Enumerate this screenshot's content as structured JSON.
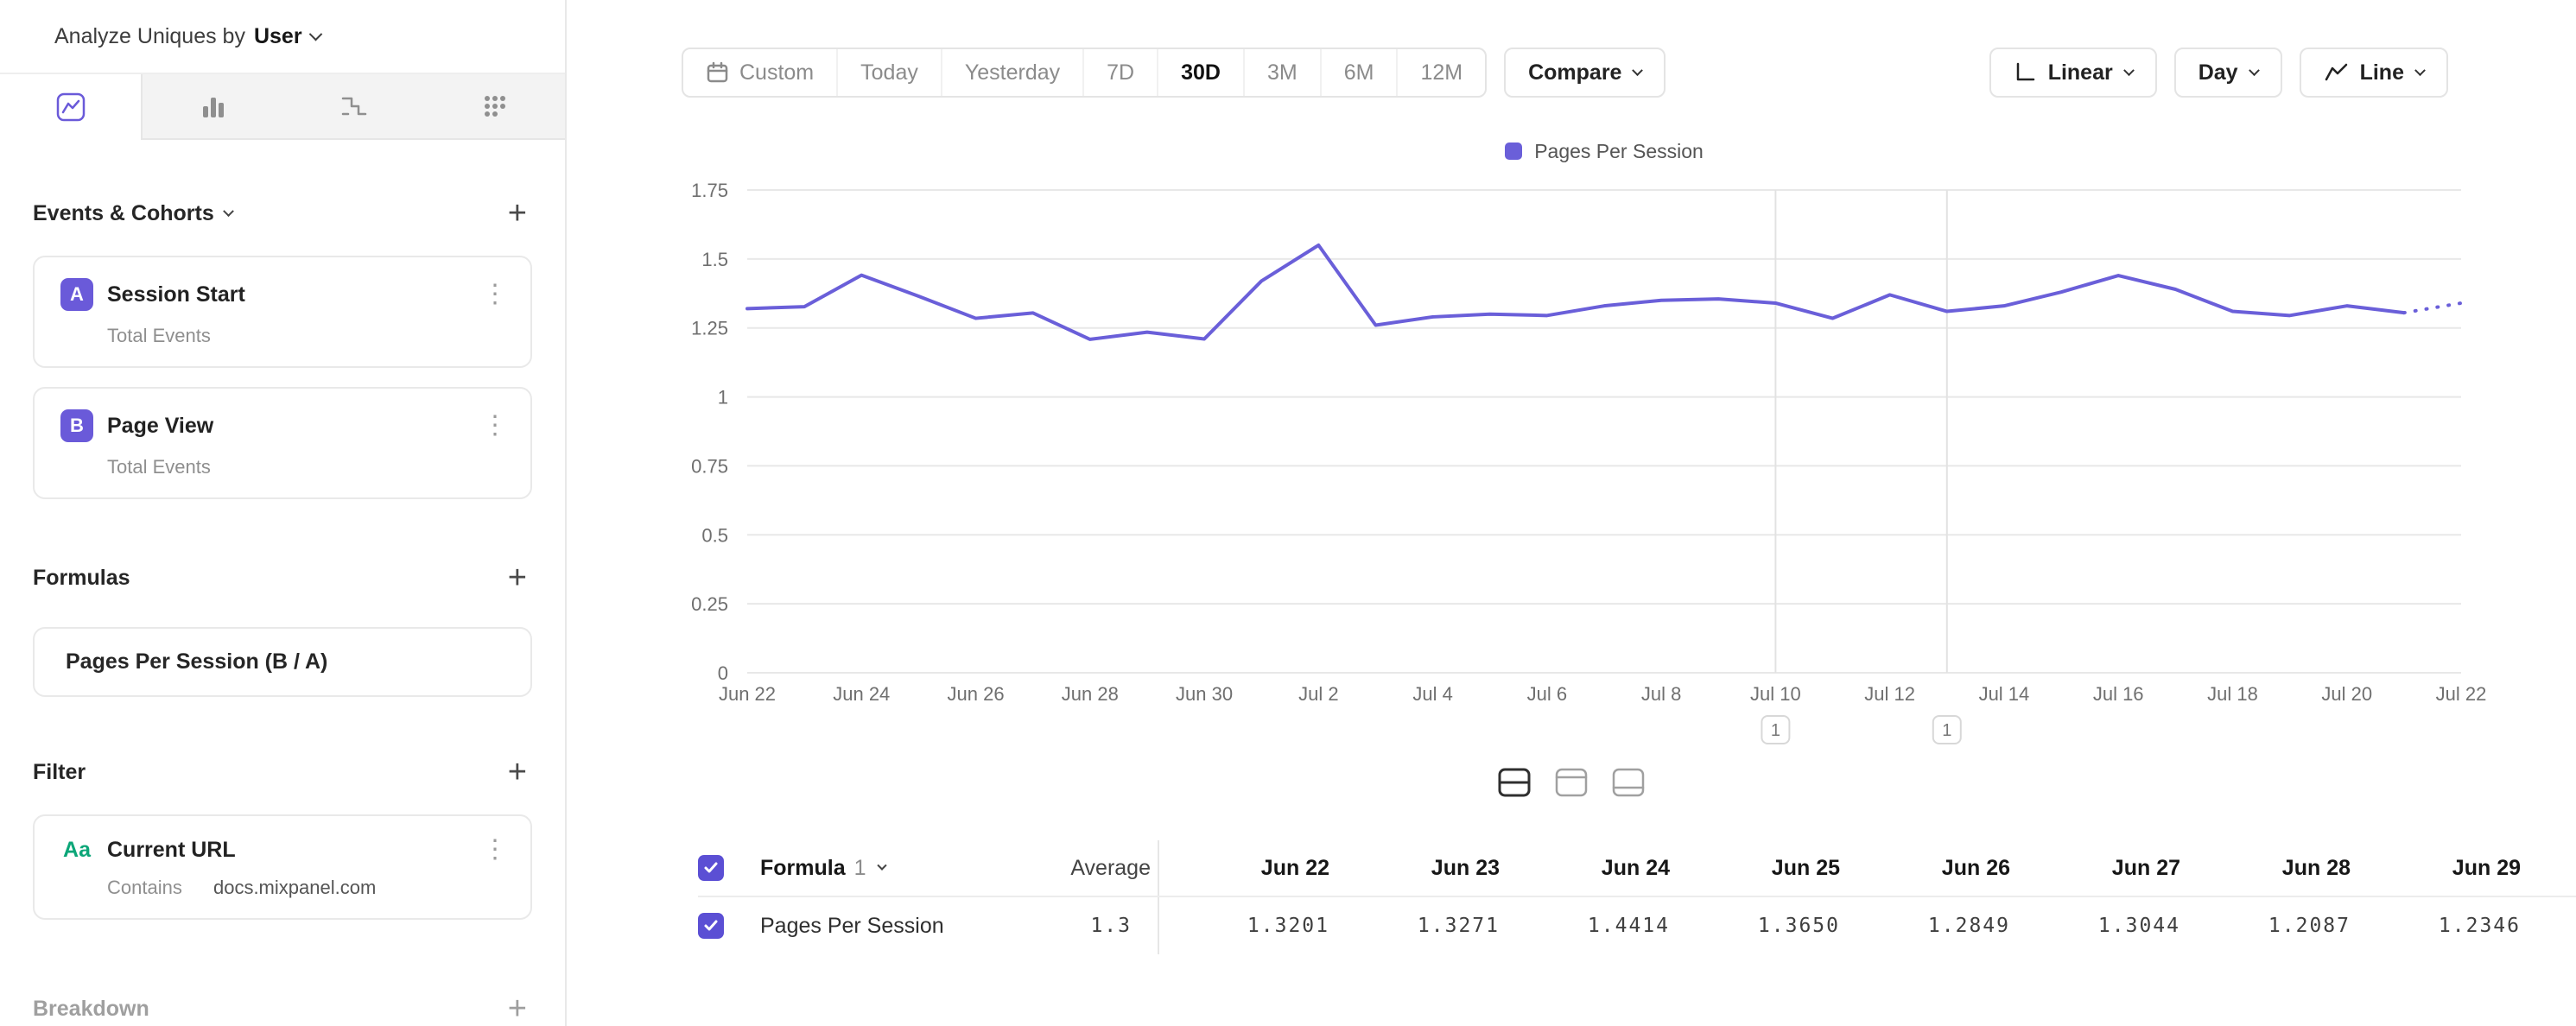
{
  "colors": {
    "accent": "#6a5ad9",
    "line": "#6a5fd9",
    "filter_green": "#0ca678"
  },
  "sidebar": {
    "header_prefix": "Analyze Uniques by",
    "header_value": "User",
    "events": {
      "title": "Events & Cohorts",
      "items": [
        {
          "badge": "A",
          "name": "Session Start",
          "subtitle": "Total Events"
        },
        {
          "badge": "B",
          "name": "Page View",
          "subtitle": "Total Events"
        }
      ]
    },
    "formulas": {
      "title": "Formulas",
      "items": [
        {
          "name": "Pages Per Session (B / A)"
        }
      ]
    },
    "filter": {
      "title": "Filter",
      "items": [
        {
          "icon_label": "Aa",
          "name": "Current URL",
          "operator": "Contains",
          "value": "docs.mixpanel.com"
        }
      ]
    },
    "breakdown": {
      "title": "Breakdown"
    }
  },
  "toolbar": {
    "ranges": [
      "Custom",
      "Today",
      "Yesterday",
      "7D",
      "30D",
      "3M",
      "6M",
      "12M"
    ],
    "selected_range": "30D",
    "compare": "Compare",
    "scale": "Linear",
    "interval": "Day",
    "chart_type": "Line"
  },
  "chart_data": {
    "type": "line",
    "x": [
      "Jun 22",
      "Jun 23",
      "Jun 24",
      "Jun 25",
      "Jun 26",
      "Jun 27",
      "Jun 28",
      "Jun 29",
      "Jun 30",
      "Jul 1",
      "Jul 2",
      "Jul 3",
      "Jul 4",
      "Jul 5",
      "Jul 6",
      "Jul 7",
      "Jul 8",
      "Jul 9",
      "Jul 10",
      "Jul 11",
      "Jul 12",
      "Jul 13",
      "Jul 14",
      "Jul 15",
      "Jul 16",
      "Jul 17",
      "Jul 18",
      "Jul 19",
      "Jul 20",
      "Jul 21",
      "Jul 22"
    ],
    "series": [
      {
        "name": "Pages Per Session",
        "color": "#6a5fd9",
        "values": [
          1.3201,
          1.3271,
          1.4414,
          1.365,
          1.2849,
          1.3044,
          1.2087,
          1.2346,
          1.21,
          1.42,
          1.55,
          1.26,
          1.29,
          1.3,
          1.295,
          1.33,
          1.35,
          1.355,
          1.34,
          1.285,
          1.37,
          1.31,
          1.33,
          1.38,
          1.44,
          1.39,
          1.31,
          1.295,
          1.33,
          1.305,
          1.34
        ]
      }
    ],
    "ylim": [
      0,
      1.75
    ],
    "yticks": [
      "0",
      "0.25",
      "0.5",
      "0.75",
      "1",
      "1.25",
      "1.5",
      "1.75"
    ],
    "x_label_step": 2,
    "legend": [
      "Pages Per Session"
    ],
    "legend_position": "top-center",
    "grid": "horizontal",
    "annotations": [
      {
        "x": "Jul 10",
        "label": "1"
      },
      {
        "x": "Jul 13",
        "label": "1"
      }
    ],
    "dashed_from_index": 29
  },
  "table": {
    "group_label": "Formula",
    "group_index": "1",
    "average_label": "Average",
    "columns": [
      "Jun 22",
      "Jun 23",
      "Jun 24",
      "Jun 25",
      "Jun 26",
      "Jun 27",
      "Jun 28",
      "Jun 29"
    ],
    "rows": [
      {
        "name": "Pages Per Session",
        "average": "1.3",
        "values": [
          "1.3201",
          "1.3271",
          "1.4414",
          "1.3650",
          "1.2849",
          "1.3044",
          "1.2087",
          "1.2346"
        ]
      }
    ]
  }
}
